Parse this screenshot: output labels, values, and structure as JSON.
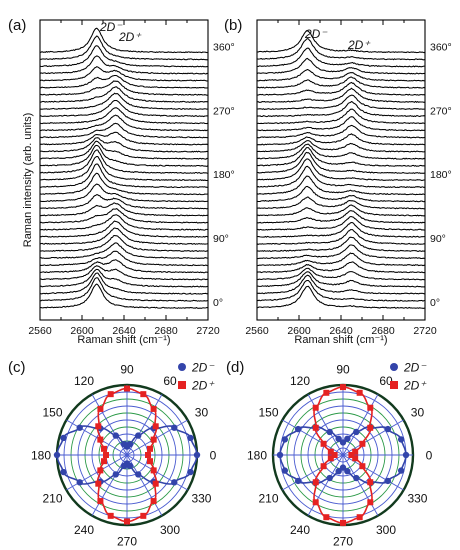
{
  "chart_data": [
    {
      "panel": "(a)",
      "type": "line",
      "xlabel": "Raman shift (cm⁻¹)",
      "ylabel": "Raman intensity (arb. units)",
      "xlim": [
        2560,
        2720
      ],
      "xticks": [
        "2560",
        "2600",
        "2640",
        "2680",
        "2720"
      ],
      "angle_labels": [
        "0°",
        "90°",
        "180°",
        "270°",
        "360°"
      ],
      "peak_labels": [
        {
          "text": "2D⁻",
          "color": "#3344aa"
        },
        {
          "text": "2D⁺",
          "color": "#e52222"
        }
      ],
      "peaks": {
        "2D-": {
          "center": 2614,
          "width": 7.0
        },
        "2D+": {
          "center": 2632,
          "width": 9.0
        }
      },
      "angles_deg": [
        0,
        10,
        20,
        30,
        40,
        50,
        60,
        70,
        80,
        90,
        100,
        110,
        120,
        130,
        140,
        150,
        160,
        170,
        180,
        190,
        200,
        210,
        220,
        230,
        240,
        250,
        260,
        270,
        280,
        290,
        300,
        310,
        320,
        330,
        340,
        350,
        360
      ],
      "series": [
        {
          "peak": "2D-",
          "values": [
            1.0,
            0.97,
            0.88,
            0.75,
            0.59,
            0.41,
            0.25,
            0.12,
            0.03,
            0.0,
            0.03,
            0.12,
            0.25,
            0.41,
            0.59,
            0.75,
            0.88,
            0.97,
            1.0,
            0.97,
            0.88,
            0.75,
            0.59,
            0.41,
            0.25,
            0.12,
            0.03,
            0.0,
            0.03,
            0.12,
            0.25,
            0.41,
            0.59,
            0.75,
            0.88,
            0.97,
            1.0
          ]
        },
        {
          "peak": "2D+",
          "values": [
            0.0,
            0.03,
            0.12,
            0.25,
            0.41,
            0.59,
            0.75,
            0.88,
            0.97,
            1.0,
            0.97,
            0.88,
            0.75,
            0.59,
            0.41,
            0.25,
            0.12,
            0.03,
            0.0,
            0.03,
            0.12,
            0.25,
            0.41,
            0.59,
            0.75,
            0.88,
            0.97,
            1.0,
            0.97,
            0.88,
            0.75,
            0.59,
            0.41,
            0.25,
            0.12,
            0.03,
            0.0
          ]
        }
      ]
    },
    {
      "panel": "(b)",
      "type": "line",
      "xlabel": "Raman shift (cm⁻¹)",
      "xlim": [
        2560,
        2720
      ],
      "xticks": [
        "2560",
        "2600",
        "2640",
        "2680",
        "2720"
      ],
      "angle_labels": [
        "0°",
        "90°",
        "180°",
        "270°",
        "360°"
      ],
      "peak_labels": [
        {
          "text": "2D⁻",
          "color": "#3344aa"
        },
        {
          "text": "2D⁺",
          "color": "#e52222"
        }
      ],
      "peaks": {
        "2D-": {
          "center": 2608,
          "width": 7.5
        },
        "2D+": {
          "center": 2650,
          "width": 8.0
        }
      },
      "angles_deg": [
        0,
        10,
        20,
        30,
        40,
        50,
        60,
        70,
        80,
        90,
        100,
        110,
        120,
        130,
        140,
        150,
        160,
        170,
        180,
        190,
        200,
        210,
        220,
        230,
        240,
        250,
        260,
        270,
        280,
        290,
        300,
        310,
        320,
        330,
        340,
        350,
        360
      ],
      "series": [
        {
          "peak": "2D-",
          "values": [
            0.9,
            0.87,
            0.79,
            0.67,
            0.53,
            0.38,
            0.25,
            0.14,
            0.08,
            0.06,
            0.08,
            0.14,
            0.25,
            0.38,
            0.53,
            0.67,
            0.79,
            0.87,
            0.9,
            0.87,
            0.79,
            0.67,
            0.53,
            0.38,
            0.25,
            0.14,
            0.08,
            0.06,
            0.08,
            0.14,
            0.25,
            0.38,
            0.53,
            0.67,
            0.79,
            0.87,
            0.9
          ]
        },
        {
          "peak": "2D+",
          "values": [
            0.06,
            0.08,
            0.14,
            0.25,
            0.38,
            0.53,
            0.67,
            0.79,
            0.87,
            0.9,
            0.87,
            0.79,
            0.67,
            0.53,
            0.38,
            0.25,
            0.14,
            0.08,
            0.06,
            0.08,
            0.14,
            0.25,
            0.38,
            0.53,
            0.67,
            0.79,
            0.87,
            0.9,
            0.87,
            0.79,
            0.67,
            0.53,
            0.38,
            0.25,
            0.14,
            0.08,
            0.06
          ]
        }
      ]
    },
    {
      "panel": "(c)",
      "type": "scatter",
      "polar": true,
      "angle_ticks": [
        "0",
        "30",
        "60",
        "90",
        "120",
        "150",
        "180",
        "210",
        "240",
        "270",
        "300",
        "330"
      ],
      "legend": [
        {
          "label": "2D⁻",
          "marker": "circle",
          "color": "#3344aa"
        },
        {
          "label": "2D⁺",
          "marker": "square",
          "color": "#e52222"
        }
      ],
      "angles_deg": [
        0,
        15,
        30,
        45,
        60,
        75,
        90,
        105,
        120,
        135,
        150,
        165,
        180,
        195,
        210,
        225,
        240,
        255,
        270,
        285,
        300,
        315,
        330,
        345
      ],
      "series": [
        {
          "name": "2D⁻",
          "values": [
            1.0,
            0.94,
            0.78,
            0.54,
            0.32,
            0.16,
            0.12,
            0.16,
            0.32,
            0.54,
            0.78,
            0.94,
            1.0,
            0.94,
            0.78,
            0.54,
            0.32,
            0.16,
            0.12,
            0.16,
            0.32,
            0.54,
            0.78,
            0.94
          ]
        },
        {
          "name": "2D⁺",
          "values": [
            0.3,
            0.34,
            0.44,
            0.58,
            0.76,
            0.9,
            0.95,
            0.9,
            0.76,
            0.58,
            0.44,
            0.34,
            0.3,
            0.34,
            0.44,
            0.58,
            0.76,
            0.9,
            0.95,
            0.9,
            0.76,
            0.58,
            0.44,
            0.34
          ]
        }
      ]
    },
    {
      "panel": "(d)",
      "type": "scatter",
      "polar": true,
      "angle_ticks": [
        "0",
        "30",
        "60",
        "90",
        "120",
        "150",
        "180",
        "210",
        "240",
        "270",
        "300",
        "330"
      ],
      "legend": [
        {
          "label": "2D⁻",
          "marker": "circle",
          "color": "#3344aa"
        },
        {
          "label": "2D⁺",
          "marker": "square",
          "color": "#e52222"
        }
      ],
      "angles_deg": [
        0,
        15,
        30,
        45,
        60,
        75,
        90,
        105,
        120,
        135,
        150,
        165,
        180,
        195,
        210,
        225,
        240,
        255,
        270,
        285,
        300,
        315,
        330,
        345
      ],
      "series": [
        {
          "name": "2D⁻",
          "values": [
            0.9,
            0.86,
            0.74,
            0.56,
            0.38,
            0.24,
            0.18,
            0.24,
            0.38,
            0.56,
            0.74,
            0.86,
            0.9,
            0.86,
            0.74,
            0.56,
            0.38,
            0.24,
            0.18,
            0.24,
            0.38,
            0.56,
            0.74,
            0.86
          ]
        },
        {
          "name": "2D⁺",
          "values": [
            0.12,
            0.18,
            0.32,
            0.55,
            0.78,
            0.92,
            0.97,
            0.92,
            0.78,
            0.55,
            0.32,
            0.18,
            0.12,
            0.18,
            0.32,
            0.55,
            0.78,
            0.92,
            0.97,
            0.92,
            0.78,
            0.55,
            0.32,
            0.18
          ]
        }
      ]
    }
  ]
}
